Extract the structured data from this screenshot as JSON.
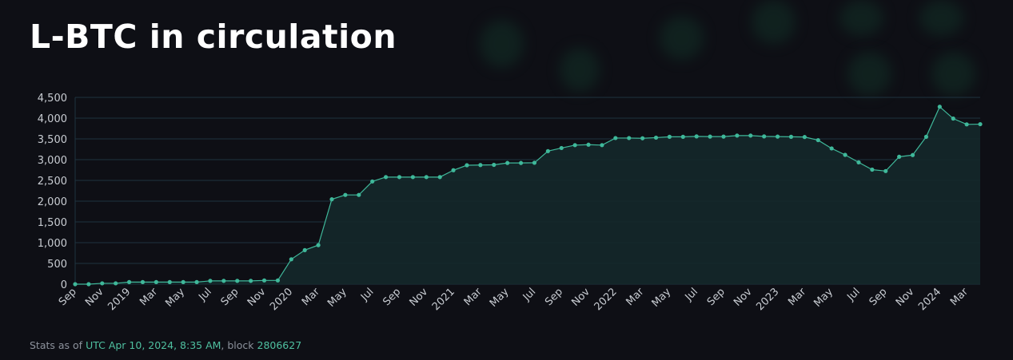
{
  "title": "L-BTC in circulation",
  "footer": {
    "prefix": "Stats as of ",
    "timestamp": "UTC Apr 10, 2024, 8:35 AM",
    "middle": ", block ",
    "block": "2806627"
  },
  "colors": {
    "line": "#3fb89a",
    "fill": "#14282a",
    "grid": "#1f3340",
    "text": "#c8ccd2"
  },
  "chart_data": {
    "type": "area",
    "title": "L-BTC in circulation",
    "xlabel": "",
    "ylabel": "",
    "ylim": [
      0,
      4500
    ],
    "yticks": [
      0,
      500,
      1000,
      1500,
      2000,
      2500,
      3000,
      3500,
      4000,
      4500
    ],
    "ytick_labels": [
      "0",
      "500",
      "1,000",
      "1,500",
      "2,000",
      "2,500",
      "3,000",
      "3,500",
      "4,000",
      "4,500"
    ],
    "grid": true,
    "x_start": "2018-09",
    "x_interval": "monthly",
    "xtick_every": 2,
    "xtick_labels": [
      "Sep",
      "Nov",
      "2019",
      "Mar",
      "May",
      "Jul",
      "Sep",
      "Nov",
      "2020",
      "Mar",
      "May",
      "Jul",
      "Sep",
      "Nov",
      "2021",
      "Mar",
      "May",
      "Jul",
      "Sep",
      "Nov",
      "2022",
      "Mar",
      "May",
      "Jul",
      "Sep",
      "Nov",
      "2023",
      "Mar",
      "May",
      "Jul",
      "Sep",
      "Nov",
      "2024",
      "Mar"
    ],
    "values": [
      0,
      0,
      20,
      20,
      50,
      50,
      50,
      50,
      50,
      50,
      80,
      80,
      80,
      80,
      90,
      90,
      600,
      820,
      940,
      2045,
      2150,
      2150,
      2475,
      2580,
      2580,
      2580,
      2580,
      2580,
      2745,
      2865,
      2870,
      2875,
      2920,
      2920,
      2925,
      3205,
      3280,
      3350,
      3360,
      3350,
      3520,
      3520,
      3515,
      3530,
      3550,
      3550,
      3560,
      3555,
      3555,
      3580,
      3580,
      3560,
      3555,
      3550,
      3545,
      3470,
      3270,
      3115,
      2935,
      2760,
      2725,
      3070,
      3110,
      3550,
      4275,
      3990,
      3850,
      3855
    ]
  }
}
